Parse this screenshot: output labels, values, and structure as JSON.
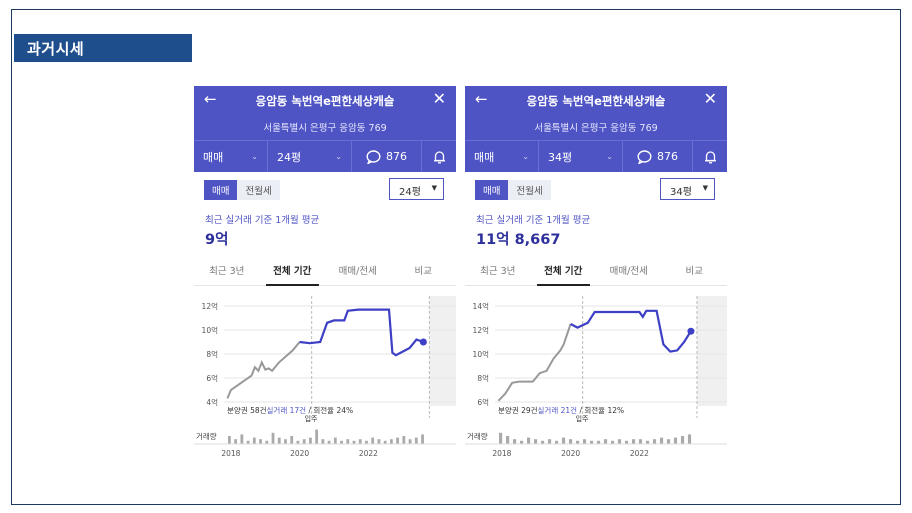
{
  "section_title": "과거시세",
  "panels": [
    {
      "title": "응암동 녹번역e편한세상캐슬",
      "address": "서울특별시 은평구 응암동 769",
      "trade_type": "매매",
      "size": "24평",
      "comments": "876",
      "toggle_on": "매매",
      "toggle_off": "전월세",
      "size_dropdown": "24평",
      "avg_label": "최근 실거래 기준 1개월 평균",
      "avg_price": "9억",
      "tabs": [
        "최근 3년",
        "전체 기간",
        "매매/전세",
        "비교"
      ],
      "stats_a": "분양권 58건",
      "stats_b": "실거래 17건",
      "stats_c": " / 회전율 24%",
      "move_in": "입주",
      "volume_label": "거래량",
      "chart_data": {
        "type": "line",
        "yticks": [
          "12억",
          "10억",
          "8억",
          "6억",
          "4억"
        ],
        "ylim": [
          4,
          12
        ],
        "xticks": [
          "2018",
          "2020",
          "2022"
        ],
        "xlim": [
          2017.8,
          2024.2
        ],
        "gray_series": [
          [
            2017.9,
            4.3
          ],
          [
            2018.0,
            5.0
          ],
          [
            2018.2,
            5.4
          ],
          [
            2018.4,
            5.8
          ],
          [
            2018.6,
            6.2
          ],
          [
            2018.7,
            6.9
          ],
          [
            2018.8,
            6.6
          ],
          [
            2018.9,
            7.3
          ],
          [
            2019.0,
            6.7
          ],
          [
            2019.1,
            6.8
          ],
          [
            2019.2,
            6.6
          ],
          [
            2019.4,
            7.3
          ],
          [
            2019.6,
            7.8
          ],
          [
            2019.8,
            8.3
          ],
          [
            2020.0,
            9.0
          ]
        ],
        "blue_series": [
          [
            2020.0,
            9.0
          ],
          [
            2020.3,
            8.9
          ],
          [
            2020.6,
            9.0
          ],
          [
            2020.8,
            10.6
          ],
          [
            2021.0,
            10.8
          ],
          [
            2021.3,
            10.8
          ],
          [
            2021.4,
            11.6
          ],
          [
            2021.7,
            11.7
          ],
          [
            2022.3,
            11.7
          ],
          [
            2022.6,
            11.7
          ],
          [
            2022.7,
            8.1
          ],
          [
            2022.8,
            7.9
          ],
          [
            2023.0,
            8.2
          ],
          [
            2023.2,
            8.5
          ],
          [
            2023.4,
            9.2
          ],
          [
            2023.6,
            9.0
          ]
        ],
        "last_point": [
          2023.6,
          9.0
        ],
        "volume": [
          0.5,
          0.3,
          0.6,
          0.2,
          0.4,
          0.3,
          0.2,
          0.7,
          0.4,
          0.3,
          0.5,
          0.2,
          0.3,
          0.4,
          0.9,
          0.3,
          0.2,
          0.4,
          0.2,
          0.3,
          0.2,
          0.3,
          0.2,
          0.4,
          0.3,
          0.2,
          0.3,
          0.4,
          0.5,
          0.3,
          0.4,
          0.6
        ]
      }
    },
    {
      "title": "응암동 녹번역e편한세상캐슬",
      "address": "서울특별시 은평구 응암동 769",
      "trade_type": "매매",
      "size": "34평",
      "comments": "876",
      "toggle_on": "매매",
      "toggle_off": "전월세",
      "size_dropdown": "34평",
      "avg_label": "최근 실거래 기준 1개월 평균",
      "avg_price": "11억 8,667",
      "tabs": [
        "최근 3년",
        "전체 기간",
        "매매/전세",
        "비교"
      ],
      "stats_a": "분양권 29건",
      "stats_b": "실거래 21건",
      "stats_c": " / 회전율 12%",
      "move_in": "입주",
      "volume_label": "거래량",
      "chart_data": {
        "type": "line",
        "yticks": [
          "14억",
          "12억",
          "10억",
          "8억",
          "6억"
        ],
        "ylim": [
          6,
          14
        ],
        "xticks": [
          "2018",
          "2020",
          "2022"
        ],
        "xlim": [
          2017.8,
          2024.2
        ],
        "gray_series": [
          [
            2017.9,
            6.1
          ],
          [
            2018.1,
            6.7
          ],
          [
            2018.3,
            7.6
          ],
          [
            2018.5,
            7.7
          ],
          [
            2018.9,
            7.7
          ],
          [
            2019.1,
            8.4
          ],
          [
            2019.3,
            8.6
          ],
          [
            2019.5,
            9.6
          ],
          [
            2019.7,
            10.3
          ],
          [
            2019.8,
            10.8
          ],
          [
            2020.0,
            12.5
          ]
        ],
        "blue_series": [
          [
            2020.0,
            12.5
          ],
          [
            2020.2,
            12.2
          ],
          [
            2020.5,
            12.6
          ],
          [
            2020.7,
            13.5
          ],
          [
            2021.0,
            13.5
          ],
          [
            2021.5,
            13.5
          ],
          [
            2022.0,
            13.5
          ],
          [
            2022.1,
            13.1
          ],
          [
            2022.2,
            13.6
          ],
          [
            2022.5,
            13.6
          ],
          [
            2022.7,
            10.8
          ],
          [
            2022.9,
            10.2
          ],
          [
            2023.1,
            10.3
          ],
          [
            2023.3,
            11.0
          ],
          [
            2023.5,
            11.9
          ]
        ],
        "last_point": [
          2023.5,
          11.9
        ],
        "volume": [
          0.7,
          0.5,
          0.3,
          0.2,
          0.4,
          0.3,
          0.2,
          0.3,
          0.2,
          0.4,
          0.3,
          0.2,
          0.3,
          0.2,
          0.2,
          0.3,
          0.2,
          0.3,
          0.2,
          0.3,
          0.3,
          0.2,
          0.3,
          0.4,
          0.3,
          0.4,
          0.5,
          0.6
        ]
      }
    }
  ]
}
